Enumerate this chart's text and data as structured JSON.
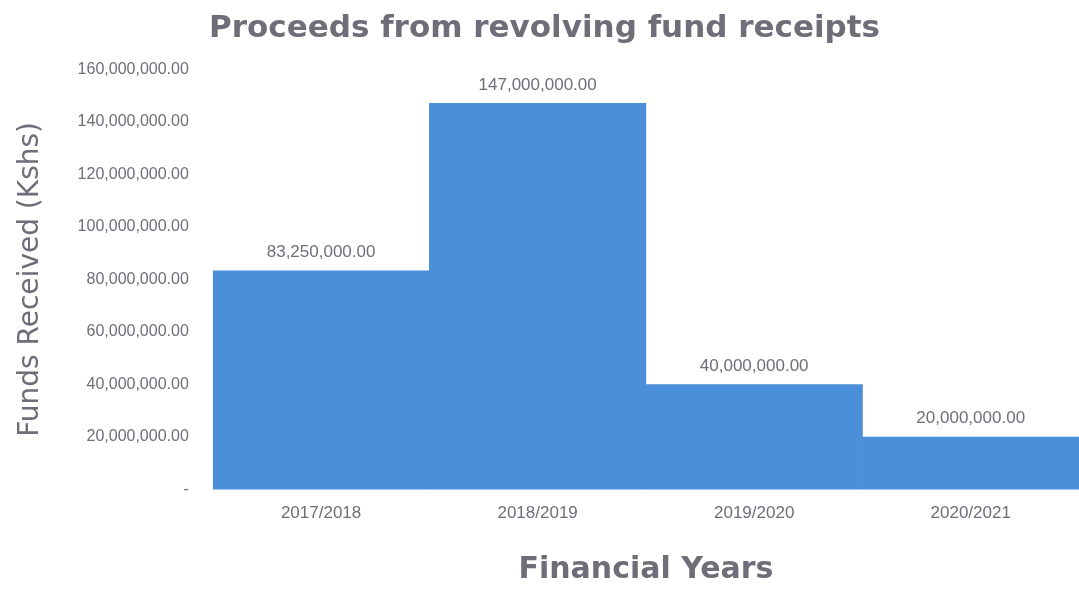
{
  "chart_data": {
    "type": "bar",
    "title": "Proceeds from revolving fund receipts",
    "xlabel": "Financial Years",
    "ylabel": "Funds Received (Kshs)",
    "categories": [
      "2017/2018",
      "2018/2019",
      "2019/2020",
      "2020/2021"
    ],
    "values": [
      83250000,
      147000000,
      40000000,
      20000000
    ],
    "value_labels": [
      "83,250,000.00",
      "147,000,000.00",
      "40,000,000.00",
      "20,000,000.00"
    ],
    "color": "#4a8fd8",
    "ylim": [
      0,
      160000000
    ],
    "yticks": [
      {
        "value": 0,
        "label": "-"
      },
      {
        "value": 20000000,
        "label": "20,000,000.00"
      },
      {
        "value": 40000000,
        "label": "40,000,000.00"
      },
      {
        "value": 60000000,
        "label": "60,000,000.00"
      },
      {
        "value": 80000000,
        "label": "80,000,000.00"
      },
      {
        "value": 100000000,
        "label": "100,000,000.00"
      },
      {
        "value": 120000000,
        "label": "120,000,000.00"
      },
      {
        "value": 140000000,
        "label": "140,000,000.00"
      },
      {
        "value": 160000000,
        "label": "160,000,000.00"
      }
    ],
    "grid": false,
    "legend": false
  }
}
